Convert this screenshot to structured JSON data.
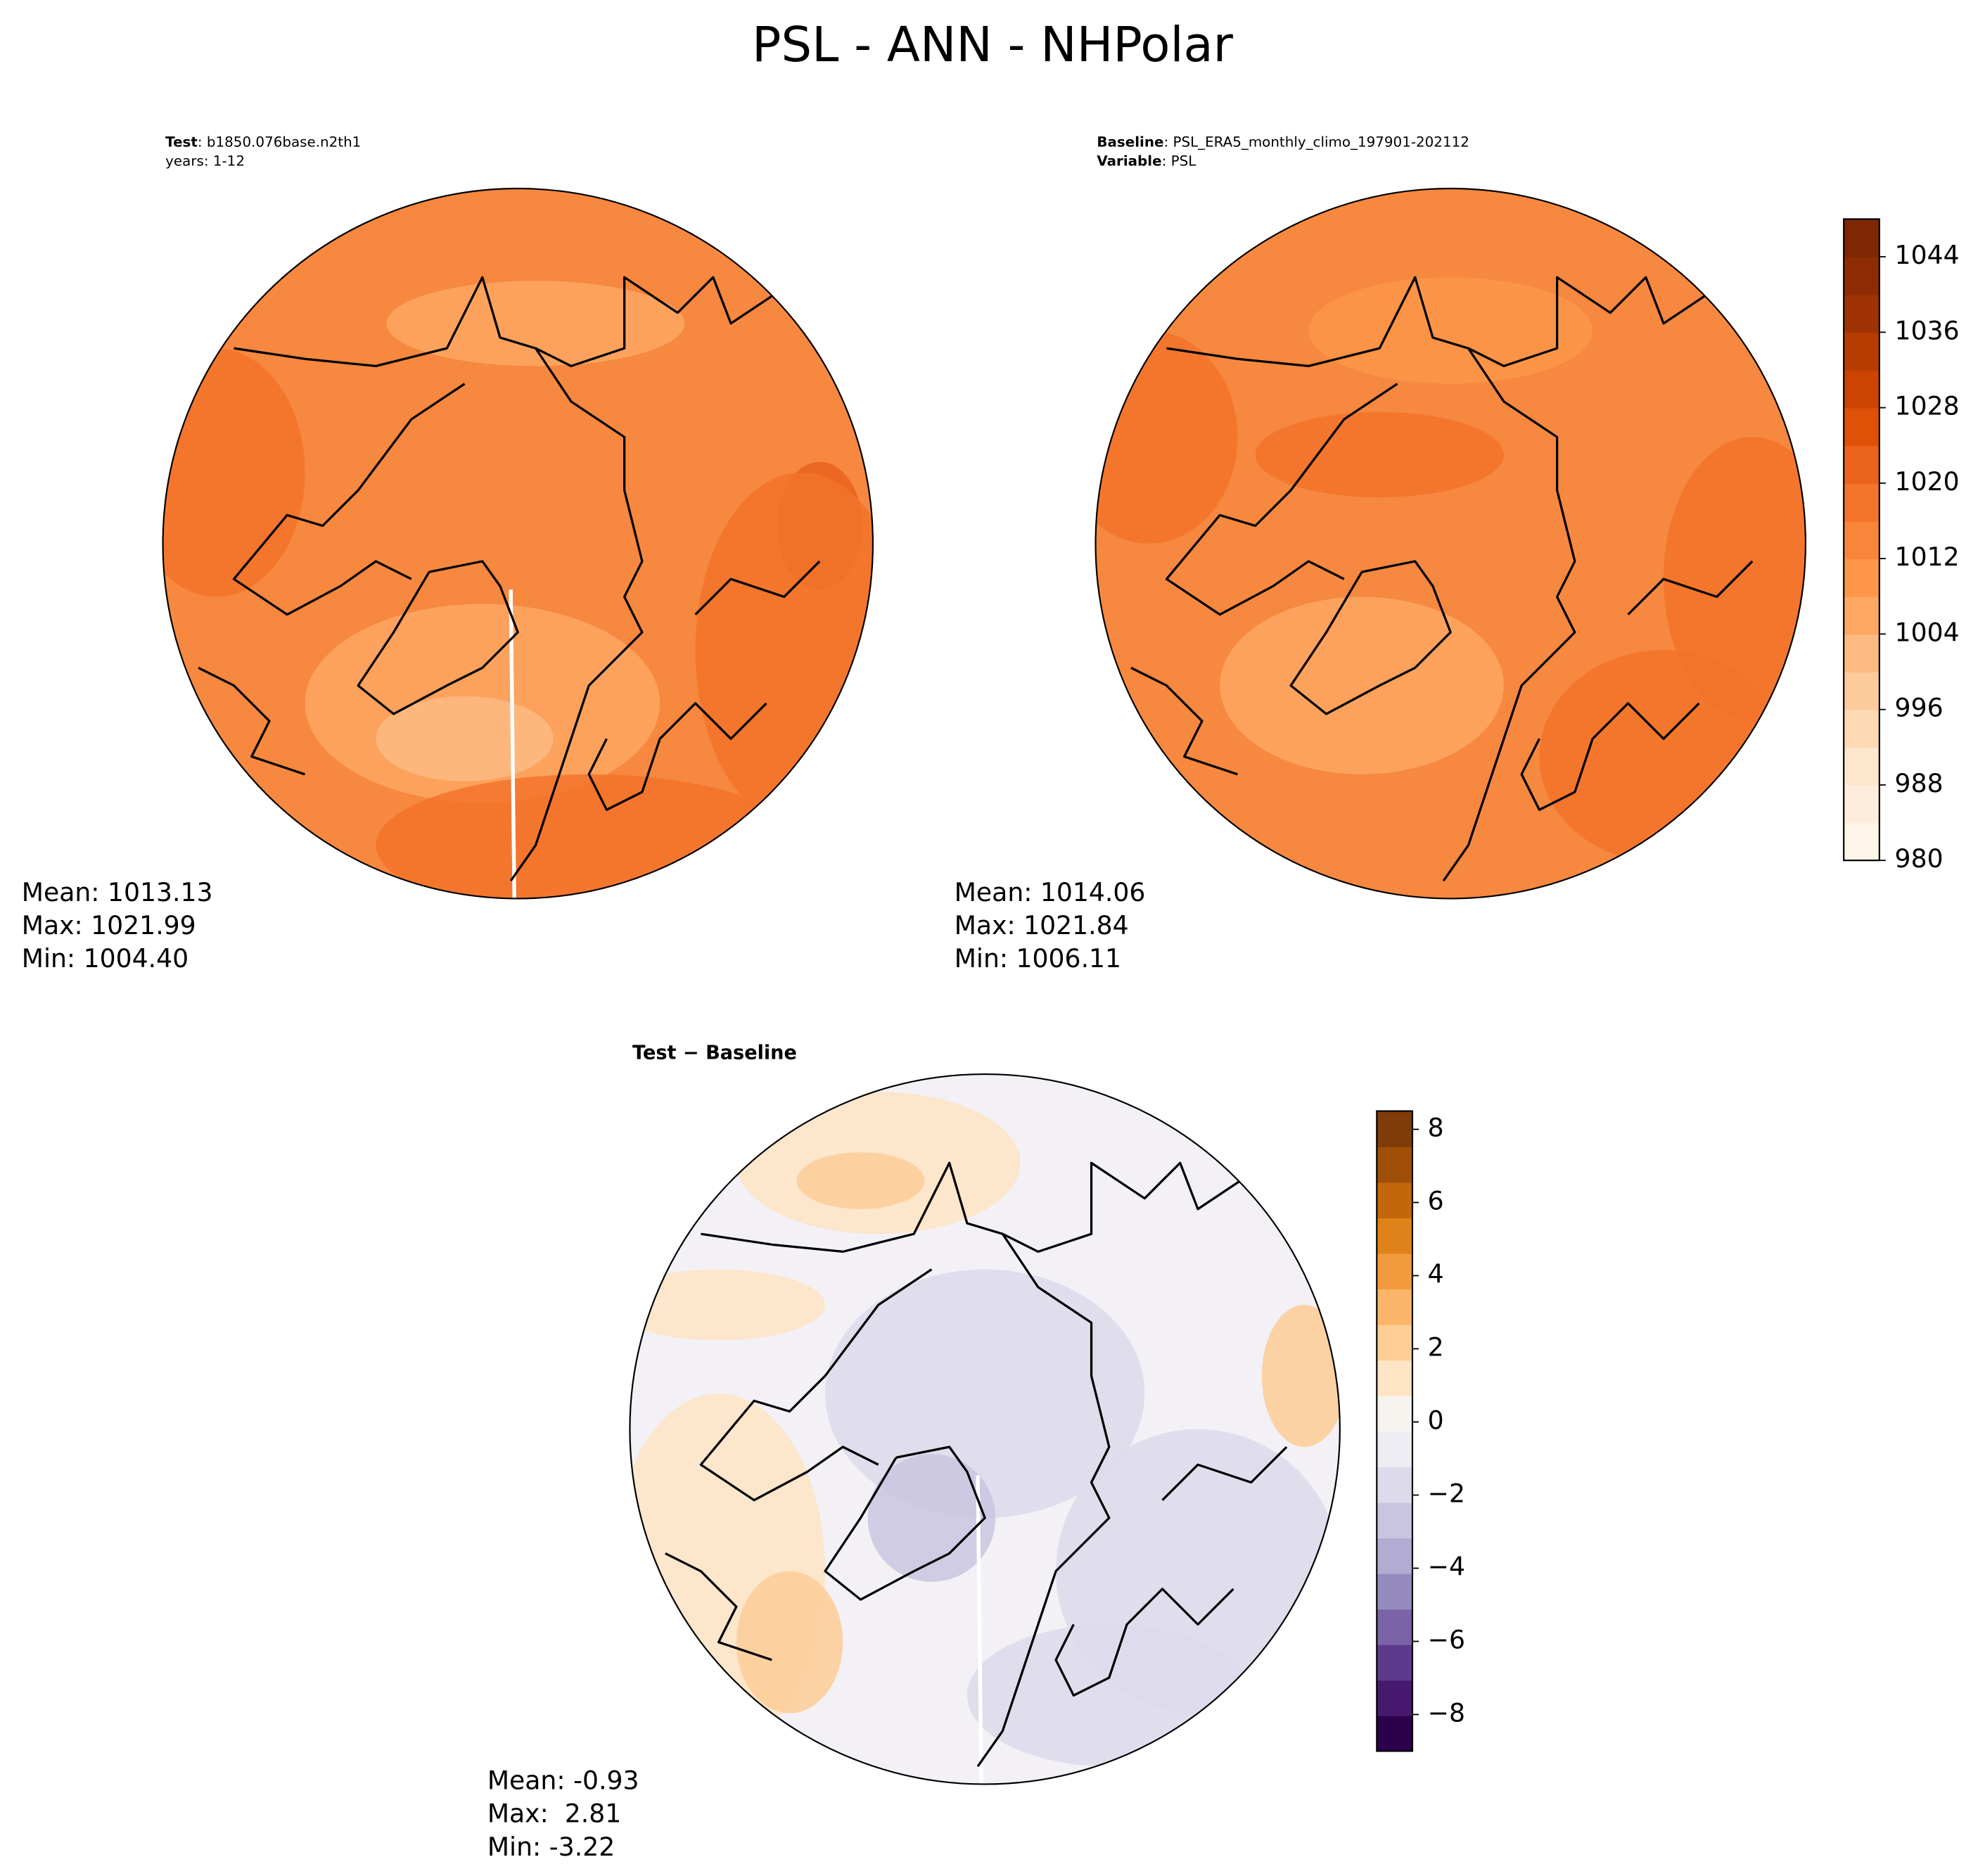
{
  "title": "PSL - ANN - NHPolar",
  "chart_data": [
    {
      "type": "map",
      "header": [
        {
          "bold": "Test",
          "text": ": b1850.076base.n2th1"
        },
        {
          "text": "years: 1-12"
        }
      ],
      "stats": [
        "Mean: 1013.13",
        "Max: 1021.99",
        "Min: 1004.40"
      ],
      "fill": "#f6883f"
    },
    {
      "type": "map",
      "header": [
        {
          "bold": "Baseline",
          "text": ": PSL_ERA5_monthly_climo_197901-202112"
        },
        {
          "bold": "Variable",
          "text": ": PSL"
        }
      ],
      "stats": [
        "Mean: 1014.06",
        "Max: 1021.84",
        "Min: 1006.11"
      ],
      "fill": "#f6883f"
    },
    {
      "type": "colorbar",
      "ylim": [
        980,
        1048
      ],
      "yticks": [
        980,
        988,
        996,
        1004,
        1012,
        1020,
        1028,
        1036,
        1044
      ],
      "colors": [
        "#fff5eb",
        "#feeddc",
        "#fee6ce",
        "#fdd9b4",
        "#fdcb9b",
        "#fdba80",
        "#fda762",
        "#fd9649",
        "#f8853a",
        "#f3732a",
        "#ea621c",
        "#df5106",
        "#cb4402",
        "#b63c02",
        "#a03303",
        "#8d2c04",
        "#7f2704"
      ]
    },
    {
      "type": "map",
      "header": [
        {
          "bold": "Test − Baseline"
        }
      ],
      "stats": [
        "Mean: -0.93",
        "Max:  2.81",
        "Min: -3.22"
      ],
      "fill": "#f3f1f6"
    },
    {
      "type": "colorbar",
      "ylim": [
        -9,
        8.5
      ],
      "yticks": [
        {
          "value": -8,
          "label": "−8"
        },
        {
          "value": -6,
          "label": "−6"
        },
        {
          "value": -4,
          "label": "−4"
        },
        {
          "value": -2,
          "label": "−2"
        },
        0,
        2,
        4,
        6,
        8
      ],
      "colors": [
        "#2d004b",
        "#46196e",
        "#5e3a8c",
        "#7a63a6",
        "#968bbe",
        "#b2abd2",
        "#c9c5e0",
        "#dcdaeb",
        "#eeedf4",
        "#f7f3ee",
        "#fde4c4",
        "#fdcd96",
        "#fbb56b",
        "#f29a3e",
        "#e0821a",
        "#c2670c",
        "#a04f08",
        "#7f3b08"
      ]
    }
  ]
}
